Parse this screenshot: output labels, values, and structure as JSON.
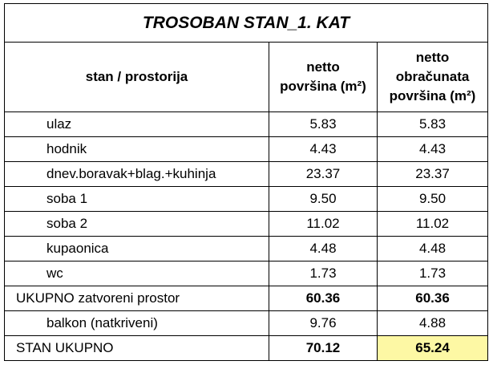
{
  "table": {
    "title": "TROSOBAN STAN_1. KAT",
    "columns": [
      [
        "stan / prostorija"
      ],
      [
        "netto",
        "površina (m²)"
      ],
      [
        "netto",
        "obračunata",
        "površina (m²)"
      ]
    ],
    "rows": [
      {
        "label": "ulaz",
        "cells": [
          "5.83",
          "5.83"
        ],
        "indent": true
      },
      {
        "label": "hodnik",
        "cells": [
          "4.43",
          "4.43"
        ],
        "indent": true
      },
      {
        "label": "dnev.boravak+blag.+kuhinja",
        "cells": [
          "23.37",
          "23.37"
        ],
        "indent": true
      },
      {
        "label": "soba 1",
        "cells": [
          "9.50",
          "9.50"
        ],
        "indent": true
      },
      {
        "label": "soba 2",
        "cells": [
          "11.02",
          "11.02"
        ],
        "indent": true
      },
      {
        "label": "kupaonica",
        "cells": [
          "4.48",
          "4.48"
        ],
        "indent": true
      },
      {
        "label": "wc",
        "cells": [
          "1.73",
          "1.73"
        ],
        "indent": true
      },
      {
        "label": "UKUPNO zatvoreni prostor",
        "cells": [
          "60.36",
          "60.36"
        ],
        "bold": true
      },
      {
        "label": "balkon (natkriveni)",
        "cells": [
          "9.76",
          "4.88"
        ],
        "indent": true
      },
      {
        "label": "STAN UKUPNO",
        "cells": [
          "70.12",
          "65.24"
        ],
        "bold": true,
        "highlight": true
      }
    ]
  }
}
